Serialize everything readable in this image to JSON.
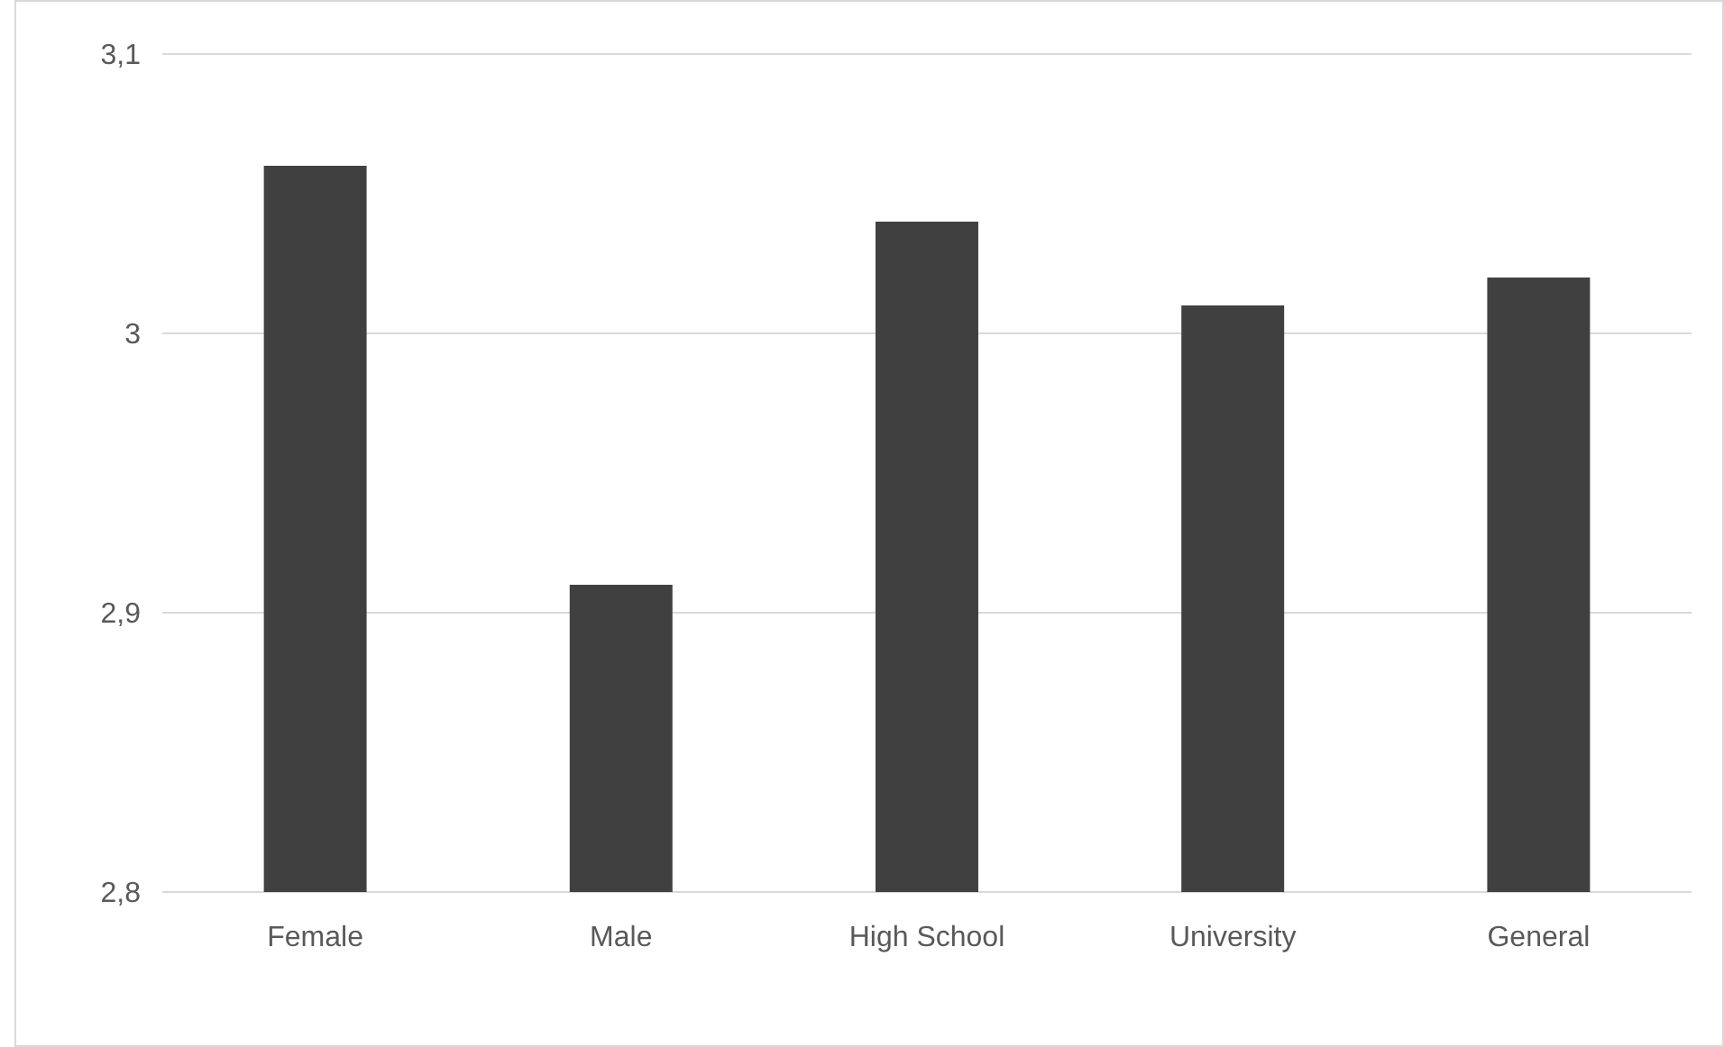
{
  "chart_data": {
    "type": "bar",
    "categories": [
      "Female",
      "Male",
      "High School",
      "University",
      "General"
    ],
    "values": [
      3.06,
      2.91,
      3.04,
      3.01,
      3.02
    ],
    "color": "#404040",
    "ylim": [
      2.8,
      3.1
    ],
    "yticks": [
      {
        "value": 2.8,
        "label": "2,8"
      },
      {
        "value": 2.9,
        "label": "2,9"
      },
      {
        "value": 3,
        "label": "3"
      },
      {
        "value": 3.1,
        "label": "3,1"
      }
    ],
    "grid": "y"
  }
}
